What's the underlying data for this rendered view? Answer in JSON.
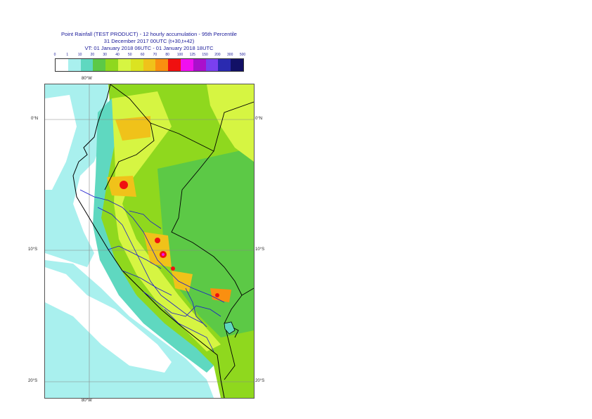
{
  "title": {
    "line1": "Point Rainfall (TEST PRODUCT) - 12 hourly accumulation - 95th Percentile",
    "line2": "31 December 2017 00UTC (t+30,t+42)",
    "line3": "VT: 01 January 2018 06UTC - 01 January 2018 18UTC"
  },
  "legend": {
    "thresholds": [
      "0",
      "1",
      "10",
      "20",
      "30",
      "40",
      "50",
      "60",
      "70",
      "80",
      "100",
      "125",
      "150",
      "200",
      "300",
      "500"
    ],
    "colors": [
      "#ffffff",
      "#a9f0ee",
      "#5fd8c0",
      "#5cc946",
      "#8fd81e",
      "#d6f542",
      "#dbe321",
      "#f0c21a",
      "#fa8f10",
      "#f01010",
      "#f010f0",
      "#aa10cc",
      "#7a40f0",
      "#2a2ab0",
      "#121066"
    ]
  },
  "grid": {
    "lon_top": "80°W",
    "lon_bottom": "80°W",
    "lat_left": [
      "0°N",
      "10°S",
      "20°S"
    ],
    "lat_right": [
      "0°N",
      "10°S",
      "20°S"
    ]
  }
}
